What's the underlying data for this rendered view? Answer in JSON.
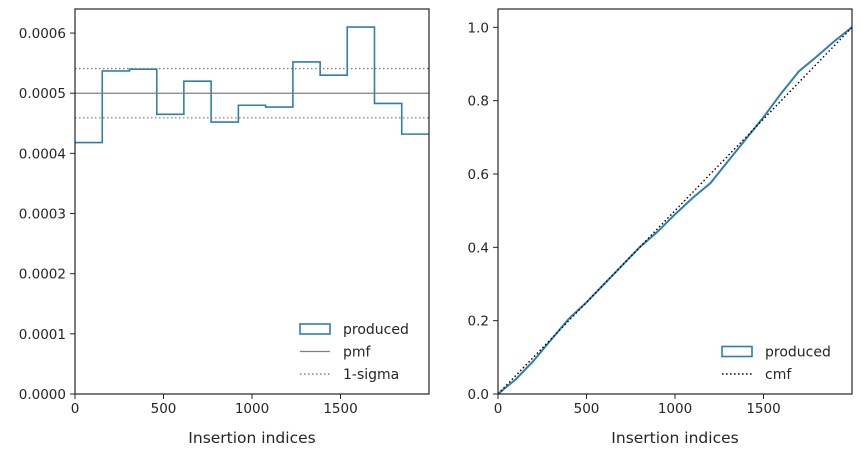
{
  "chart_data": [
    {
      "type": "line",
      "subtype": "step-histogram",
      "xlabel": "Insertion indices",
      "ylabel": "",
      "xlim": [
        0,
        2000
      ],
      "ylim": [
        0,
        0.00064
      ],
      "xticks": [
        0,
        500,
        1000,
        1500
      ],
      "xtick_labels": [
        "0",
        "500",
        "1000",
        "1500"
      ],
      "yticks": [
        0,
        0.0001,
        0.0002,
        0.0003,
        0.0004,
        0.0005,
        0.0006
      ],
      "ytick_labels": [
        "0.0000",
        "0.0001",
        "0.0002",
        "0.0003",
        "0.0004",
        "0.0005",
        "0.0006"
      ],
      "grid": false,
      "legend_position": "lower-right",
      "bin_edges": [
        0,
        154,
        308,
        462,
        615,
        769,
        923,
        1077,
        1231,
        1385,
        1538,
        1692,
        1846,
        2000
      ],
      "series": [
        {
          "name": "produced",
          "style": "step",
          "color": "#2e7fae",
          "values": [
            0.000418,
            0.000537,
            0.00054,
            0.000465,
            0.00052,
            0.000452,
            0.00048,
            0.000477,
            0.000552,
            0.00053,
            0.00061,
            0.000483,
            0.000432
          ]
        },
        {
          "name": "pmf",
          "style": "hline",
          "color": "#808080",
          "value": 0.0005
        },
        {
          "name": "1-sigma",
          "style": "hline-dotted",
          "color": "#808080",
          "values": [
            0.000459,
            0.000541
          ]
        }
      ]
    },
    {
      "type": "line",
      "xlabel": "Insertion indices",
      "ylabel": "",
      "xlim": [
        0,
        2000
      ],
      "ylim": [
        0,
        1.05
      ],
      "xticks": [
        0,
        500,
        1000,
        1500
      ],
      "xtick_labels": [
        "0",
        "500",
        "1000",
        "1500"
      ],
      "yticks": [
        0,
        0.2,
        0.4,
        0.6,
        0.8,
        1.0
      ],
      "ytick_labels": [
        "0.0",
        "0.2",
        "0.4",
        "0.6",
        "0.8",
        "1.0"
      ],
      "grid": false,
      "legend_position": "lower-right",
      "series": [
        {
          "name": "produced",
          "style": "solid",
          "color": "#2e7fae",
          "x": [
            0,
            100,
            200,
            300,
            400,
            500,
            600,
            700,
            800,
            900,
            1000,
            1100,
            1200,
            1300,
            1400,
            1500,
            1600,
            1700,
            1800,
            1900,
            2000
          ],
          "y": [
            0,
            0.04,
            0.09,
            0.148,
            0.205,
            0.25,
            0.3,
            0.35,
            0.4,
            0.442,
            0.49,
            0.535,
            0.575,
            0.635,
            0.695,
            0.755,
            0.82,
            0.88,
            0.92,
            0.962,
            1.0
          ]
        },
        {
          "name": "cmf",
          "style": "dotted",
          "color": "#000000",
          "x": [
            0,
            2000
          ],
          "y": [
            0,
            1.0
          ]
        }
      ]
    }
  ]
}
